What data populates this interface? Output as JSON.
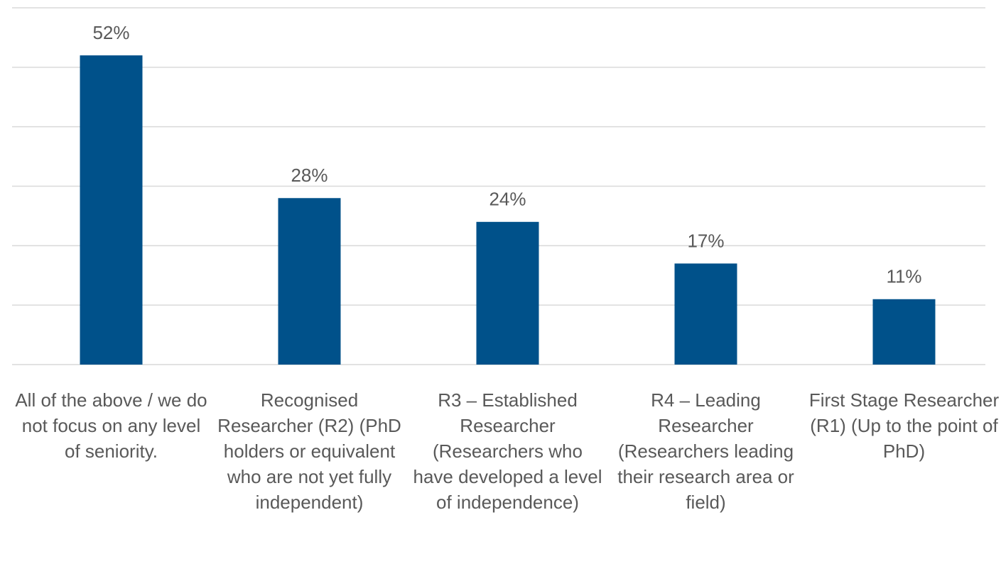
{
  "chart_data": {
    "type": "bar",
    "categories": [
      "All of the above / we do not focus on any level of seniority.",
      "Recognised Researcher (R2) (PhD holders or equivalent who are not yet fully independent)",
      "R3 – Established Researcher (Researchers who have developed a level of independence)",
      "R4 – Leading Researcher (Researchers leading their research area or field)",
      "First Stage Researcher (R1) (Up to the point of PhD)"
    ],
    "values": [
      52,
      28,
      24,
      17,
      11
    ],
    "value_labels": [
      "52%",
      "28%",
      "24%",
      "17%",
      "11%"
    ],
    "color": "#00518a",
    "ylim": [
      0,
      60
    ],
    "yticks": [
      0,
      10,
      20,
      30,
      40,
      50,
      60
    ],
    "grid": true
  }
}
